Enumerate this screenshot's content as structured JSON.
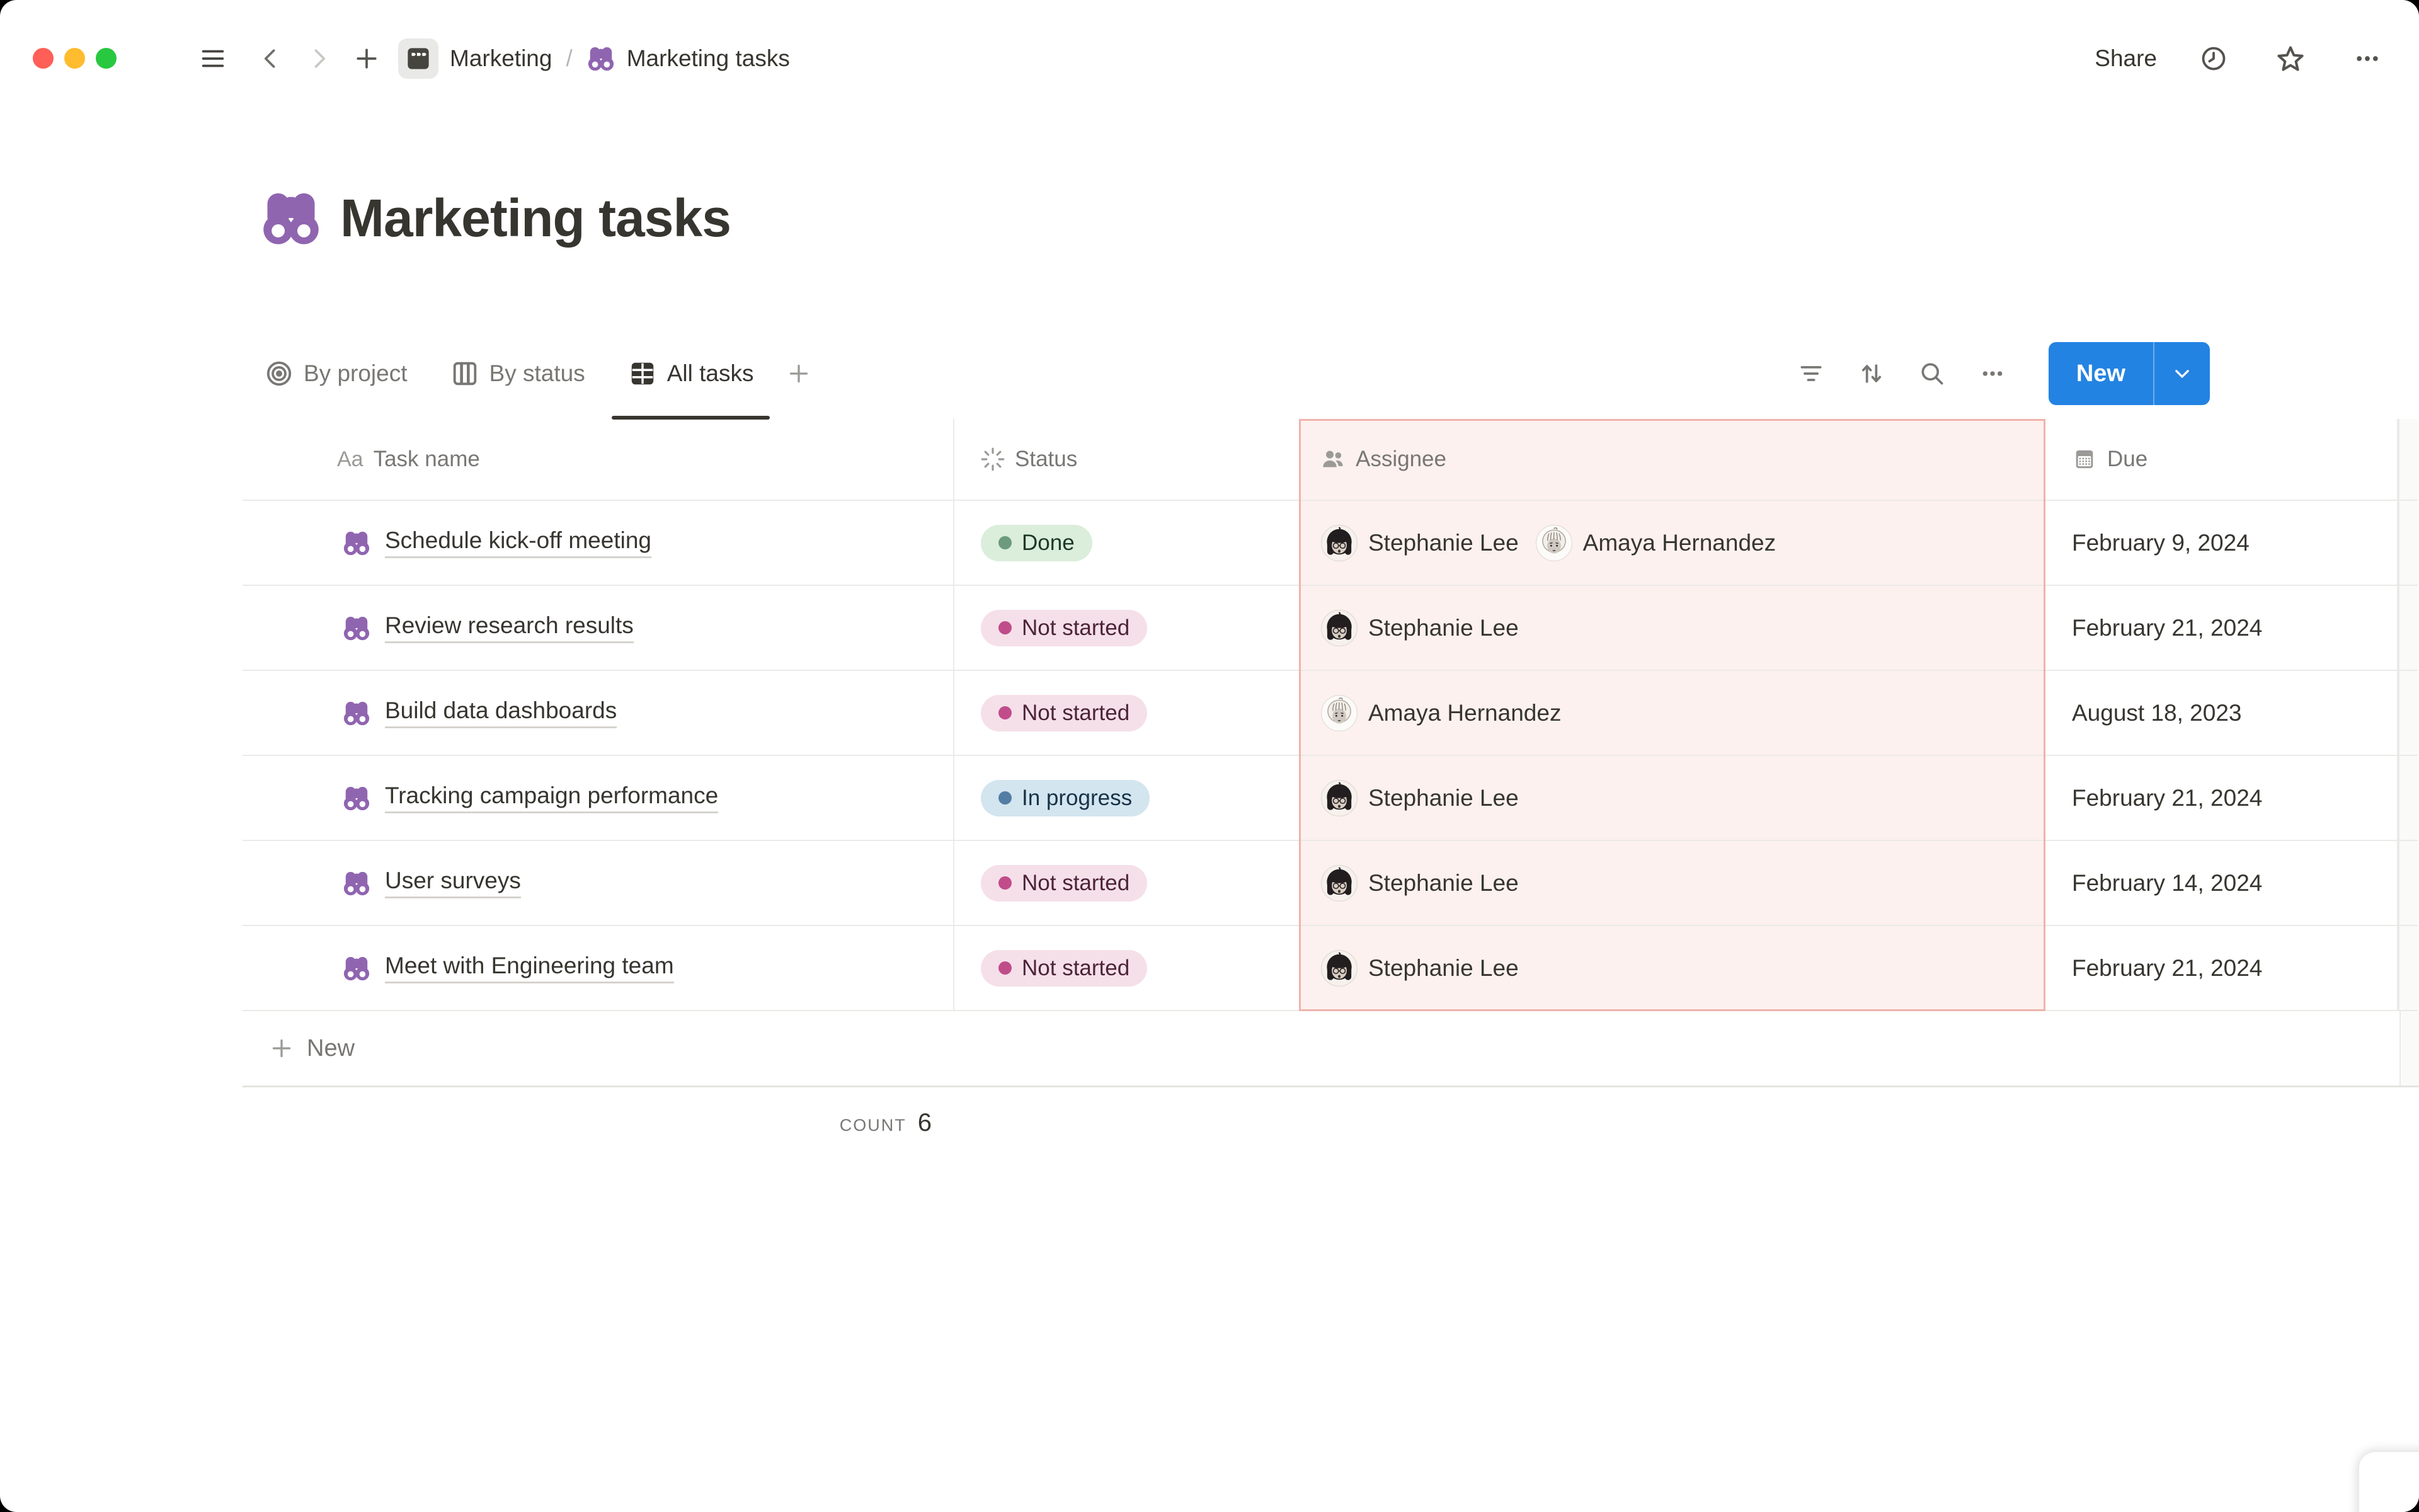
{
  "topbar": {
    "breadcrumb": {
      "parent": "Marketing",
      "separator": "/",
      "current": "Marketing tasks"
    },
    "share_label": "Share"
  },
  "page": {
    "title": "Marketing tasks",
    "icon": "binoculars-icon"
  },
  "views": {
    "tabs": [
      {
        "label": "By project",
        "icon": "target-icon",
        "active": false
      },
      {
        "label": "By status",
        "icon": "board-columns-icon",
        "active": false
      },
      {
        "label": "All tasks",
        "icon": "table-icon",
        "active": true
      }
    ]
  },
  "toolbar": {
    "new_label": "New"
  },
  "table": {
    "columns": [
      {
        "key": "task",
        "label": "Task name",
        "icon": "text-aa-icon",
        "highlighted": false
      },
      {
        "key": "status",
        "label": "Status",
        "icon": "status-spinner-icon",
        "highlighted": false
      },
      {
        "key": "assignee",
        "label": "Assignee",
        "icon": "people-icon",
        "highlighted": true
      },
      {
        "key": "due",
        "label": "Due",
        "icon": "calendar-icon",
        "highlighted": false
      }
    ],
    "rows": [
      {
        "task": "Schedule kick-off meeting",
        "status": {
          "label": "Done",
          "color": "green"
        },
        "assignees": [
          {
            "name": "Stephanie Lee",
            "avatar": "stephanie"
          },
          {
            "name": "Amaya Hernandez",
            "avatar": "amaya"
          }
        ],
        "due": "February 9, 2024"
      },
      {
        "task": "Review research results",
        "status": {
          "label": "Not started",
          "color": "pink"
        },
        "assignees": [
          {
            "name": "Stephanie Lee",
            "avatar": "stephanie"
          }
        ],
        "due": "February 21, 2024"
      },
      {
        "task": "Build data dashboards",
        "status": {
          "label": "Not started",
          "color": "pink"
        },
        "assignees": [
          {
            "name": "Amaya Hernandez",
            "avatar": "amaya"
          }
        ],
        "due": "August 18, 2023"
      },
      {
        "task": "Tracking campaign performance",
        "status": {
          "label": "In progress",
          "color": "blue"
        },
        "assignees": [
          {
            "name": "Stephanie Lee",
            "avatar": "stephanie"
          }
        ],
        "due": "February 21, 2024"
      },
      {
        "task": "User surveys",
        "status": {
          "label": "Not started",
          "color": "pink"
        },
        "assignees": [
          {
            "name": "Stephanie Lee",
            "avatar": "stephanie"
          }
        ],
        "due": "February 14, 2024"
      },
      {
        "task": "Meet with Engineering team",
        "status": {
          "label": "Not started",
          "color": "pink"
        },
        "assignees": [
          {
            "name": "Stephanie Lee",
            "avatar": "stephanie"
          }
        ],
        "due": "February 21, 2024"
      }
    ],
    "new_row_label": "New",
    "footer": {
      "count_label": "COUNT",
      "count_value": "6"
    }
  },
  "colors": {
    "accent_blue": "#2383E2",
    "icon_purple": "#9065B0",
    "traffic_red": "#FF5F57",
    "traffic_yellow": "#FEBC2E",
    "traffic_green": "#28C840",
    "status_green": {
      "bg": "#DBEDDB",
      "dot": "#6C9B7D",
      "text": "#1C3829"
    },
    "status_pink": {
      "bg": "#F5E0E9",
      "dot": "#C14C8A",
      "text": "#4C2337"
    },
    "status_blue": {
      "bg": "#D3E5EF",
      "dot": "#527DA5",
      "text": "#183347"
    },
    "assignee_highlight": {
      "bg": "#FCF1EF",
      "border": "#EFB3AC"
    }
  }
}
